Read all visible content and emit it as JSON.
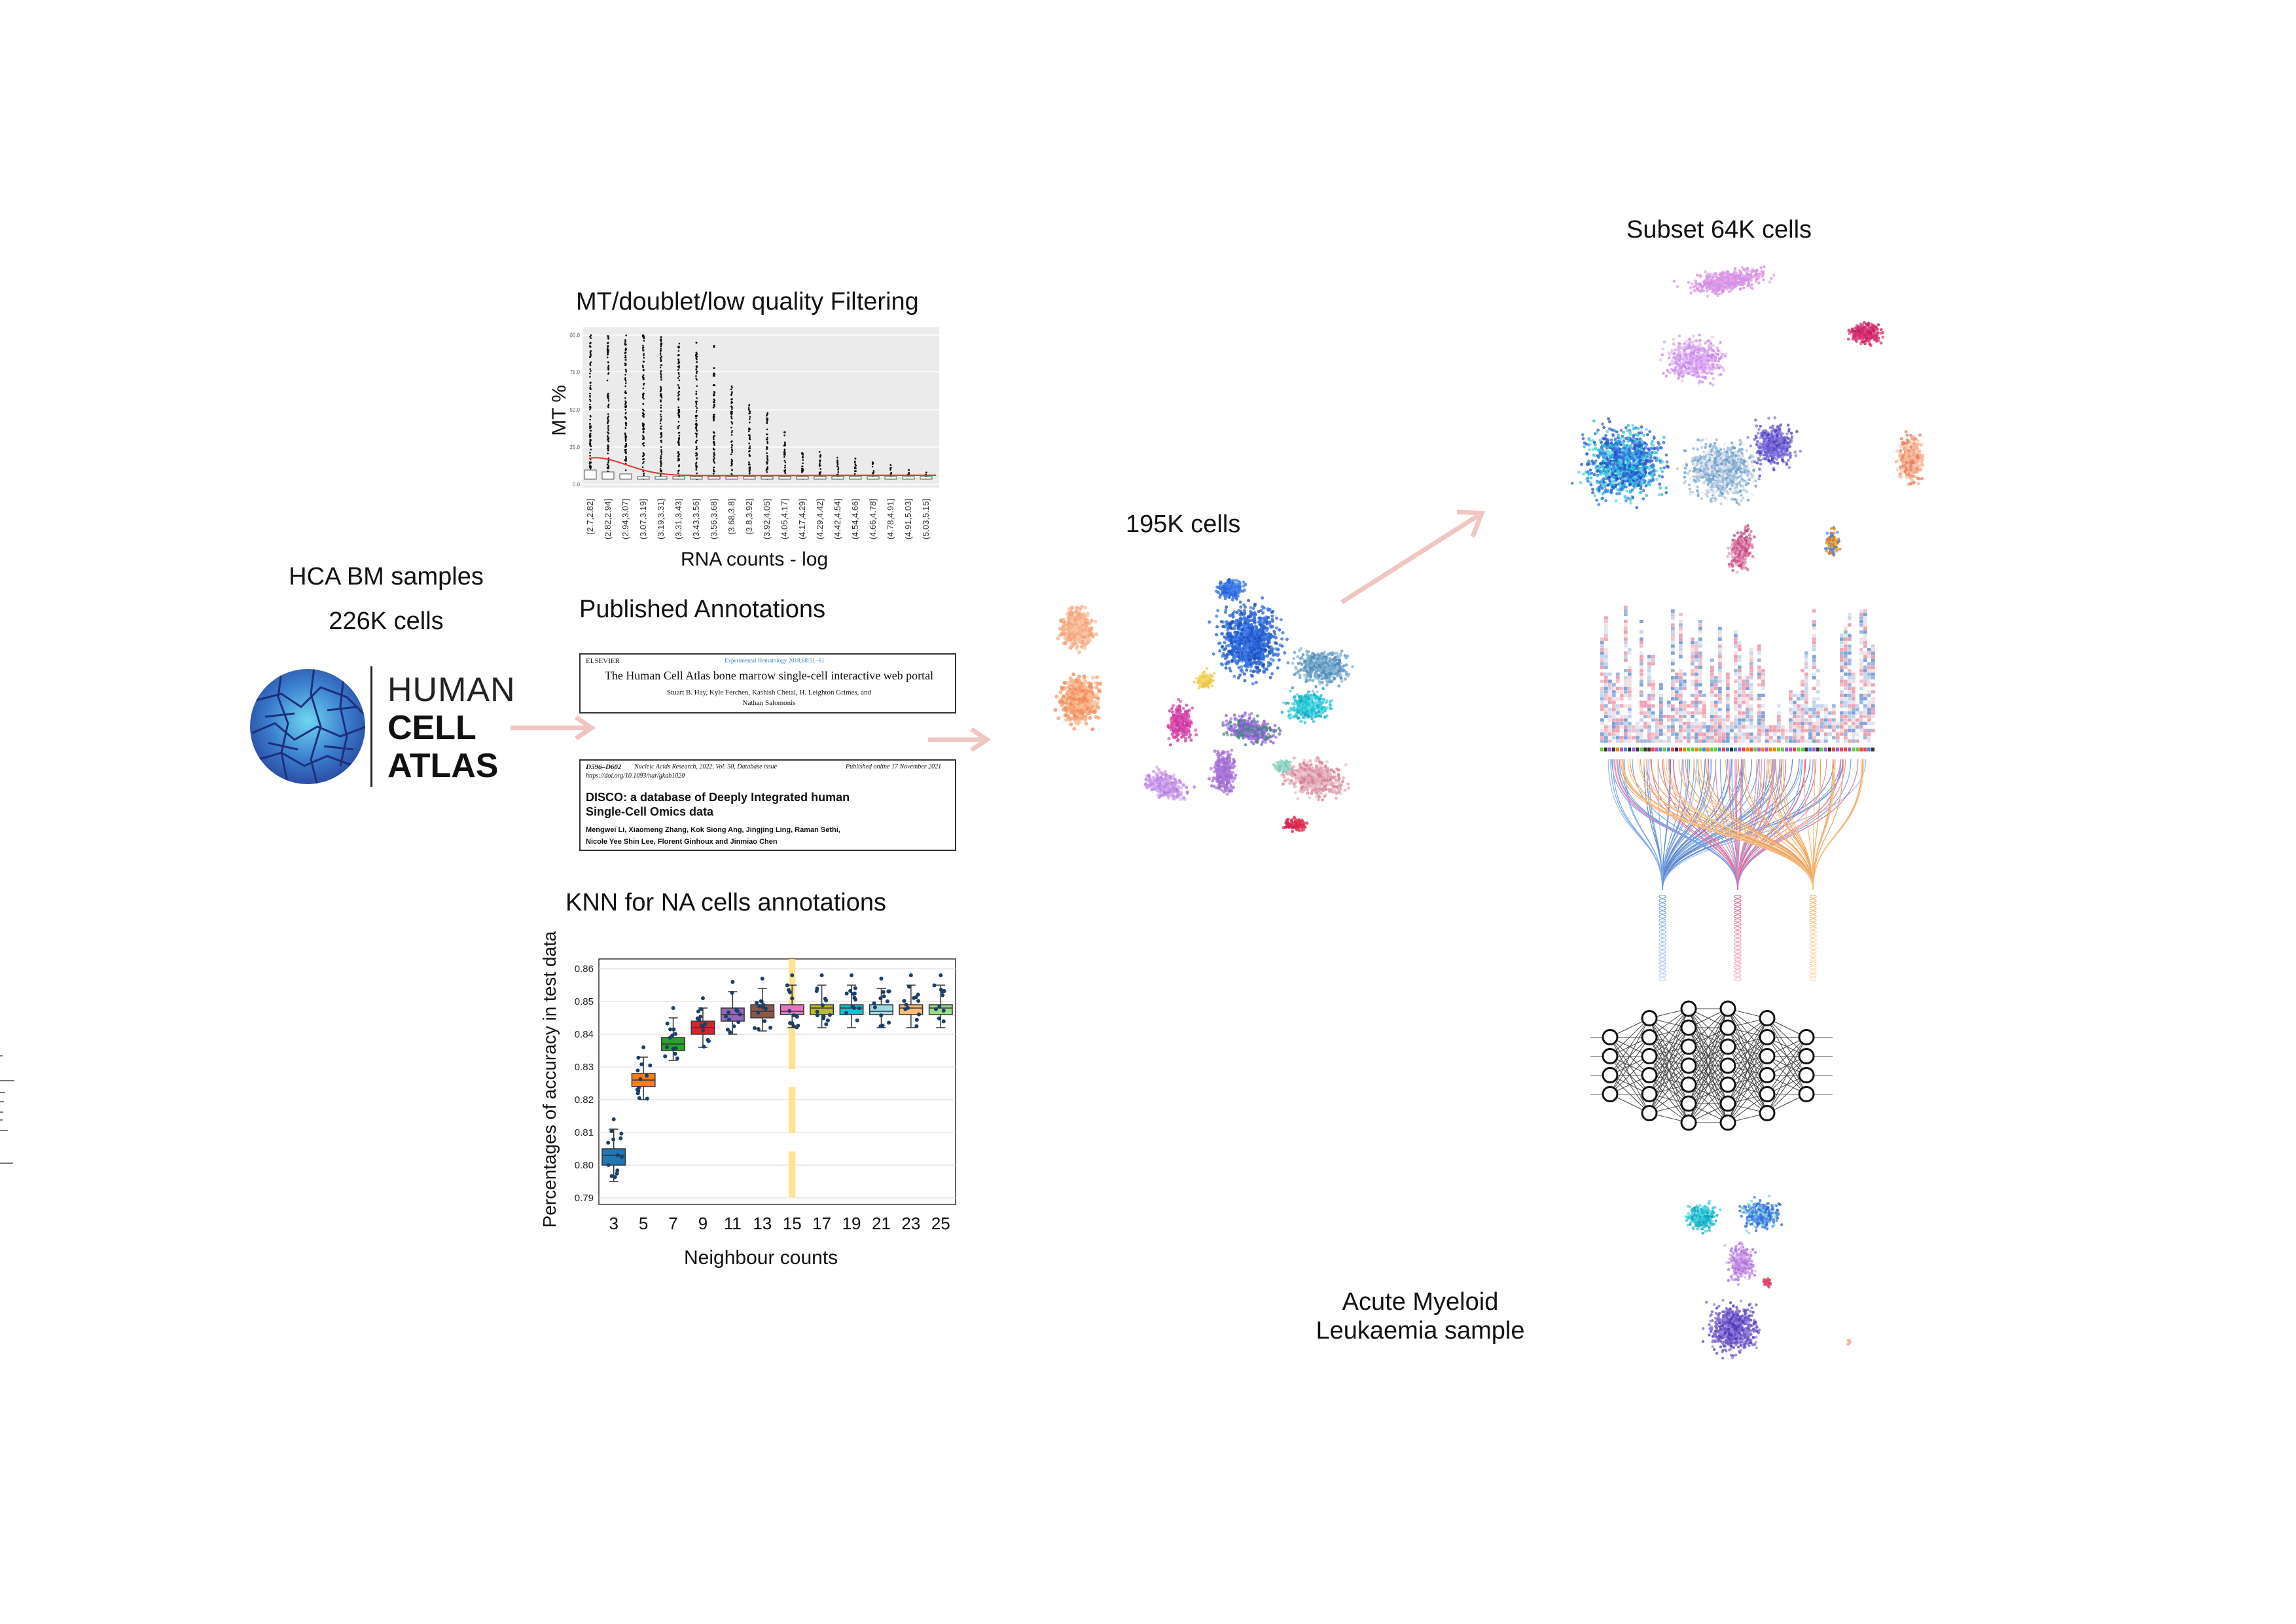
{
  "source": {
    "title_line1": "HCA BM samples",
    "title_line2": "226K cells",
    "logo_word1": "HUMAN",
    "logo_word2": "CELL",
    "logo_word3": "ATLAS"
  },
  "filtering": {
    "title": "MT/doublet/low quality Filtering",
    "xlabel": "RNA counts - log",
    "ylabel": "MT %",
    "y_ticks": [
      "100.0",
      "75.0",
      "50.0",
      "25.0",
      "0.0"
    ],
    "x_ticks": [
      "[2.7,2.82]",
      "(2.82,2.94]",
      "(2.94,3.07]",
      "(3.07,3.19]",
      "(3.19,3.31]",
      "(3.31,3.43]",
      "(3.43,3.56]",
      "(3.56,3.68]",
      "(3.68,3.8]",
      "(3.8,3.92]",
      "(3.92,4.05]",
      "(4.05,4.17]",
      "(4.17,4.29]",
      "(4.29,4.42]",
      "(4.42,4.54]",
      "(4.54,4.66]",
      "(4.66,4.78]",
      "(4.78,4.91]",
      "(4.91,5.03]",
      "(5.03,5.15]"
    ]
  },
  "annotations": {
    "title": "Published Annotations",
    "paper1": {
      "publisher": "ELSEVIER",
      "journal": "Experimental Hematology 2018;68:51−61",
      "title": "The Human Cell Atlas bone marrow single-cell interactive web portal",
      "authors_line1": "Stuart B. Hay, Kyle Ferchen, Kashish Chetal, H. Leighton Grimes, and",
      "authors_line2": "Nathan Salomonis"
    },
    "paper2": {
      "pages": "D596–D602",
      "journal": "Nucleic Acids Research, 2022, Vol. 50, Database issue",
      "doi": "https://doi.org/10.1093/nar/gkab1020",
      "published": "Published online 17 November 2021",
      "title_line1": "DISCO: a database of Deeply Integrated human",
      "title_line2": "Single-Cell Omics data",
      "authors_line1": "Mengwei Li, Xiaomeng Zhang, Kok Siong Ang, Jingjing Ling, Raman Sethi,",
      "authors_line2": "Nicole Yee Shin Lee, Florent Ginhoux and Jinmiao Chen"
    }
  },
  "knn": {
    "title": "KNN for NA cells annotations",
    "xlabel": "Neighbour counts",
    "ylabel": "Percentages of accuracy in test data"
  },
  "chart_data": {
    "type": "box",
    "title": "KNN for NA cells annotations",
    "xlabel": "Neighbour counts",
    "ylabel": "Percentages of accuracy in test data",
    "categories": [
      "3",
      "5",
      "7",
      "9",
      "11",
      "13",
      "15",
      "17",
      "19",
      "21",
      "23",
      "25"
    ],
    "y_ticks": [
      "0.86",
      "0.85",
      "0.84",
      "0.83",
      "0.82",
      "0.81",
      "0.80",
      "0.79"
    ],
    "ylim": [
      0.788,
      0.863
    ],
    "medians": [
      0.803,
      0.826,
      0.837,
      0.842,
      0.846,
      0.847,
      0.847,
      0.848,
      0.848,
      0.847,
      0.848,
      0.848
    ],
    "q1": [
      0.8,
      0.824,
      0.835,
      0.84,
      0.844,
      0.845,
      0.846,
      0.846,
      0.846,
      0.846,
      0.846,
      0.846
    ],
    "q3": [
      0.805,
      0.828,
      0.839,
      0.844,
      0.848,
      0.849,
      0.849,
      0.849,
      0.849,
      0.849,
      0.849,
      0.849
    ],
    "whisker_low": [
      0.795,
      0.82,
      0.832,
      0.836,
      0.84,
      0.841,
      0.842,
      0.842,
      0.842,
      0.842,
      0.842,
      0.842
    ],
    "whisker_high": [
      0.811,
      0.833,
      0.845,
      0.848,
      0.853,
      0.854,
      0.855,
      0.855,
      0.855,
      0.854,
      0.855,
      0.855
    ],
    "highlight_category": "15",
    "grid": true,
    "colors": [
      "#1f77b4",
      "#ff7f0e",
      "#2ca02c",
      "#d62728",
      "#9467bd",
      "#8c564b",
      "#e377c2",
      "#bcbd22",
      "#17becf",
      "#9edae5",
      "#ffbb78",
      "#98df8a"
    ]
  },
  "umap_main": {
    "label": "195K cells"
  },
  "subset": {
    "label": "Subset 64K cells"
  },
  "aml": {
    "label_line1": "Acute Myeloid",
    "label_line2": "Leukaemia sample"
  },
  "colors": {
    "arrow": "#f0c4c0",
    "highlight": "#ffe07a"
  }
}
